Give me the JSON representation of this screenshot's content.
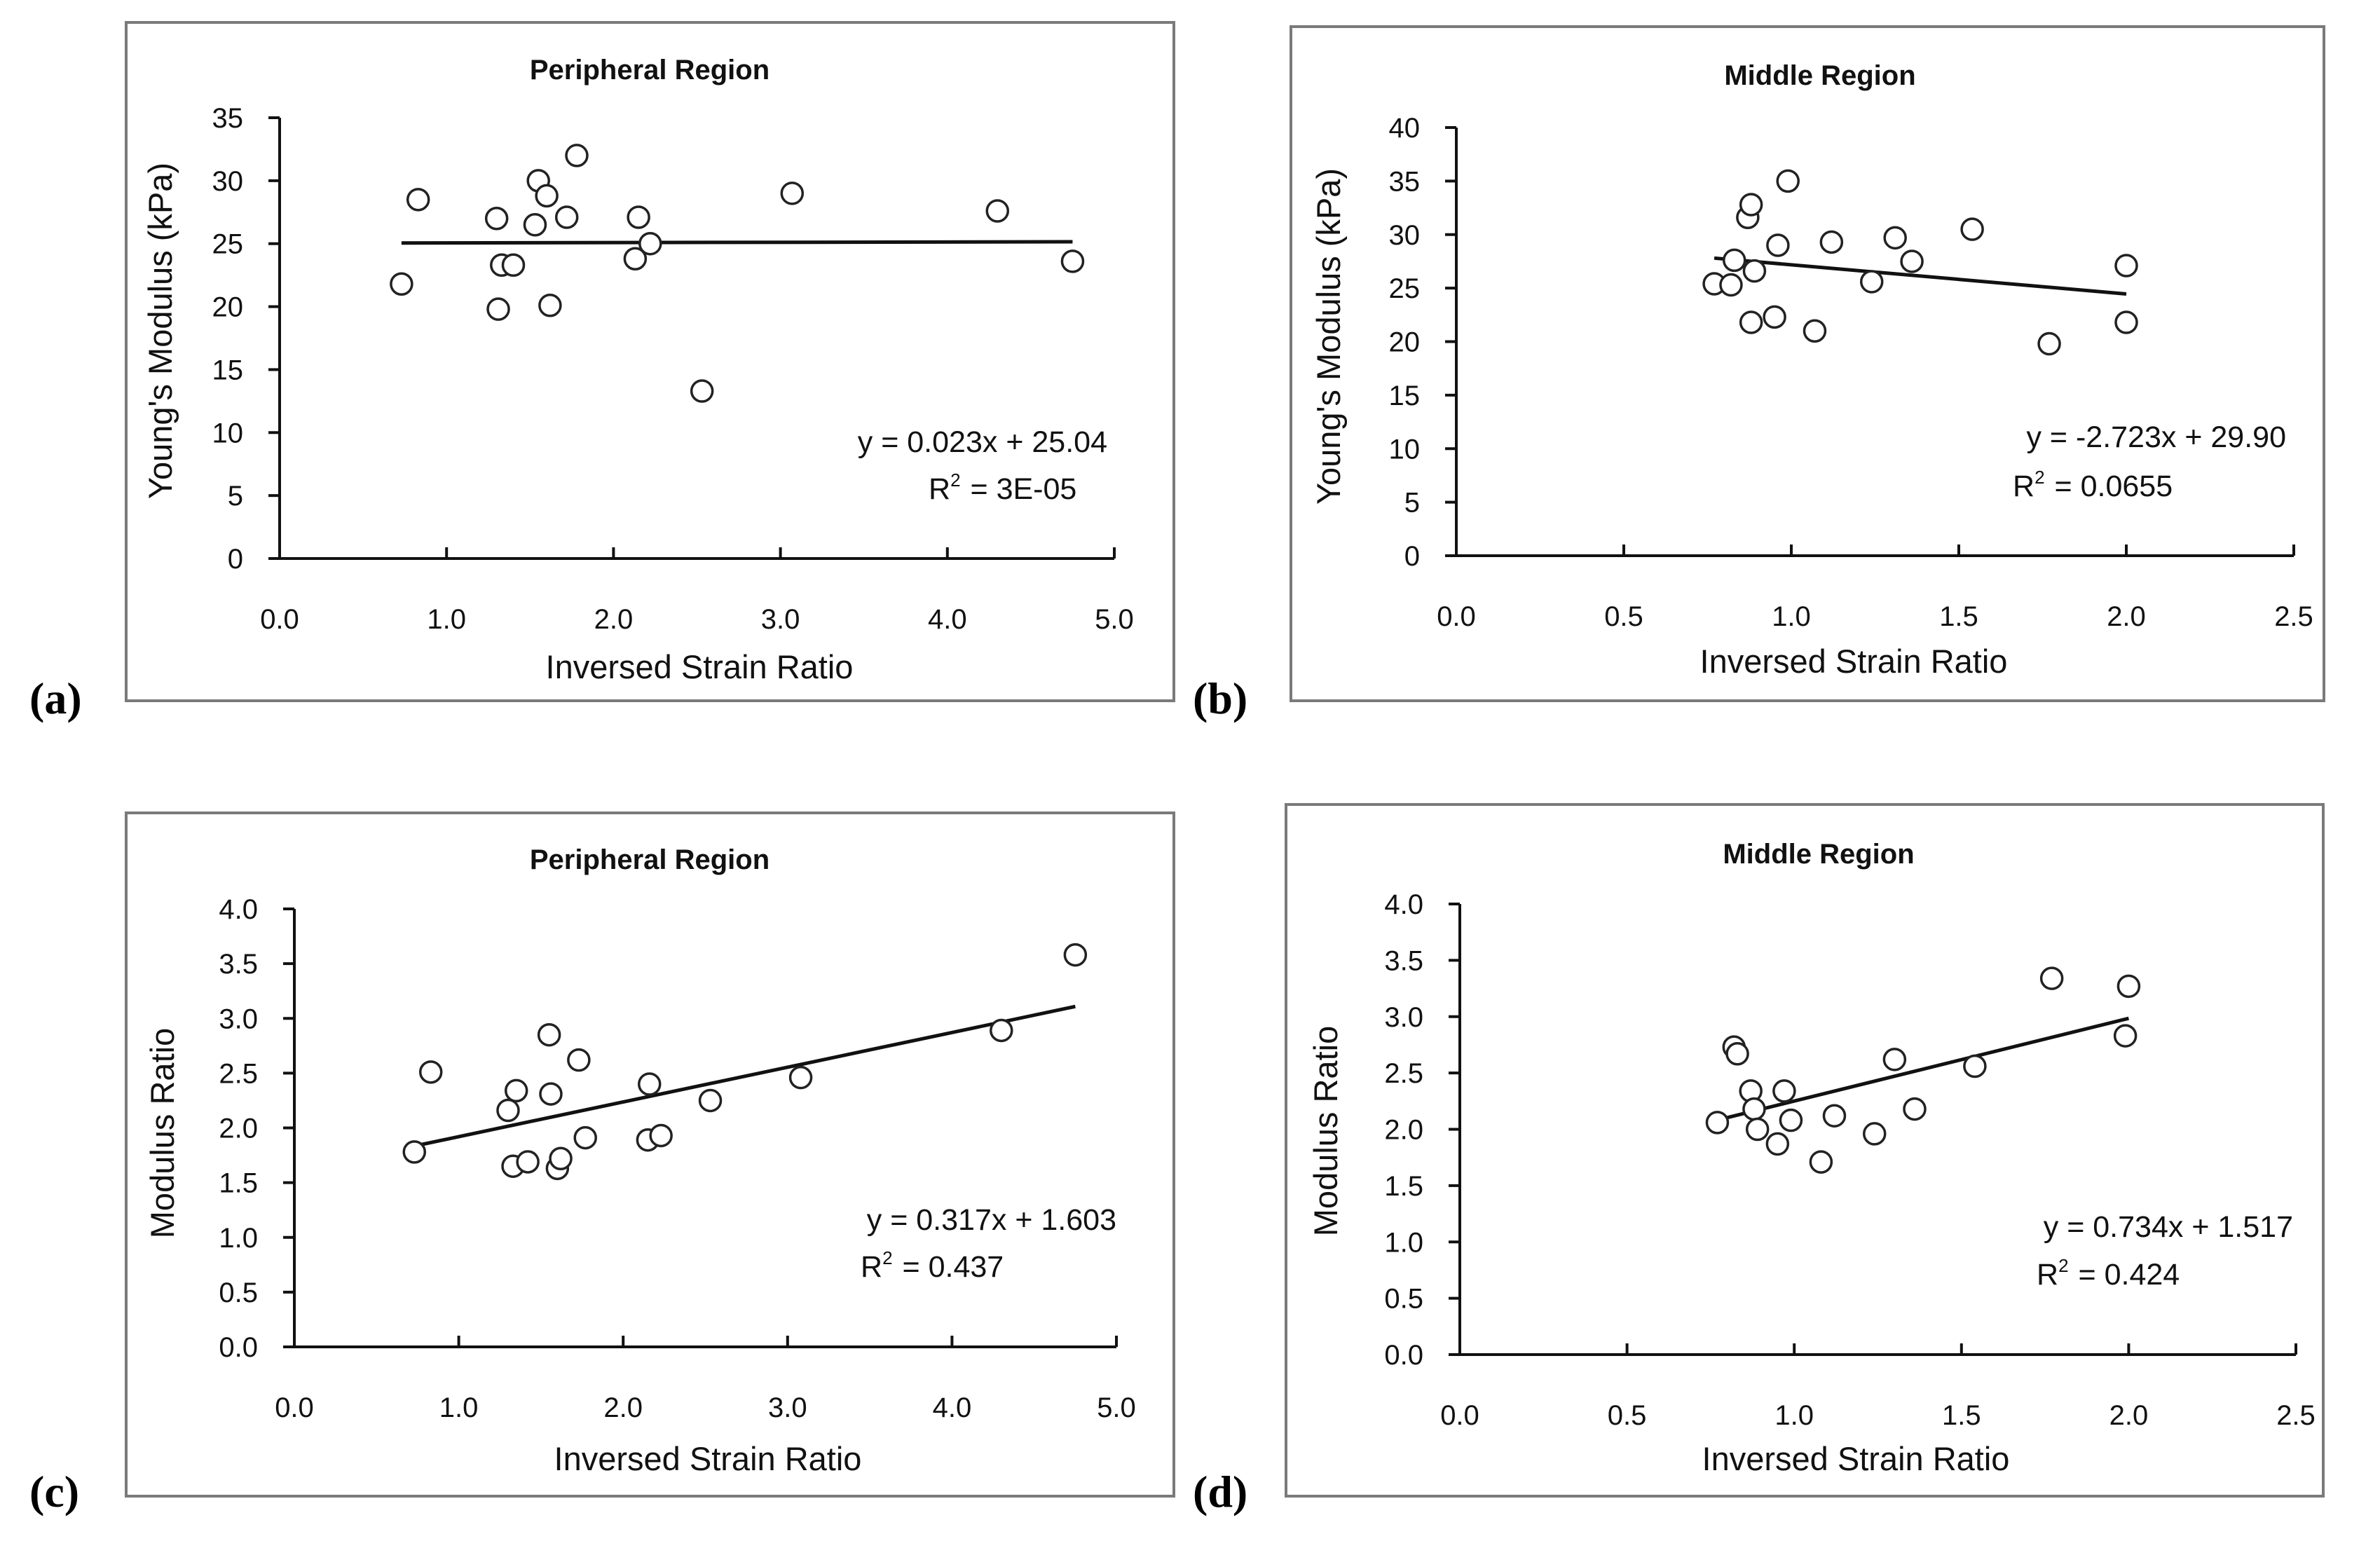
{
  "colors": {
    "background": "#ffffff",
    "axis": "#111111",
    "frame": "#7a7a7a",
    "marker_fill": "#ffffff",
    "marker_stroke": "#222222"
  },
  "panels": [
    {
      "label": "(a)"
    },
    {
      "label": "(b)"
    },
    {
      "label": "(c)"
    },
    {
      "label": "(d)"
    }
  ],
  "chart_data": [
    {
      "type": "scatter",
      "title": "Peripheral Region",
      "xlabel": "Inversed Strain Ratio",
      "ylabel": "Young's Modulus (kPa)",
      "xlim": [
        0,
        5
      ],
      "ylim": [
        0,
        35
      ],
      "x_ticks": [
        "0.0",
        "1.0",
        "2.0",
        "3.0",
        "4.0",
        "5.0"
      ],
      "y_ticks": [
        "0",
        "5",
        "10",
        "15",
        "20",
        "25",
        "30",
        "35"
      ],
      "x": [
        0.73,
        0.83,
        1.3,
        1.33,
        1.4,
        1.31,
        1.55,
        1.6,
        1.53,
        1.62,
        1.72,
        1.78,
        2.13,
        2.15,
        2.22,
        2.53,
        3.07,
        4.3,
        4.75
      ],
      "y": [
        21.8,
        28.5,
        27.0,
        23.3,
        23.3,
        19.8,
        30.0,
        28.8,
        26.5,
        20.1,
        27.1,
        32.0,
        23.8,
        27.1,
        25.0,
        13.3,
        29.0,
        27.6,
        23.6
      ],
      "trendline": {
        "slope": 0.023,
        "intercept": 25.04,
        "x_range": [
          0.73,
          4.75
        ]
      },
      "equation": "y = 0.023x + 25.04",
      "r2_label": "R",
      "r2_sup": "2",
      "r2_value": "= 3E-05"
    },
    {
      "type": "scatter",
      "title": "Middle Region",
      "xlabel": "Inversed Strain Ratio",
      "ylabel": "Young's Modulus (kPa)",
      "xlim": [
        0,
        2.5
      ],
      "ylim": [
        0,
        40
      ],
      "x_ticks": [
        "0.0",
        "0.5",
        "1.0",
        "1.5",
        "2.0",
        "2.5"
      ],
      "y_ticks": [
        "0",
        "5",
        "10",
        "15",
        "20",
        "25",
        "30",
        "35",
        "40"
      ],
      "x": [
        0.77,
        0.82,
        0.83,
        0.87,
        0.88,
        0.89,
        0.88,
        0.95,
        0.96,
        0.99,
        1.07,
        1.12,
        1.24,
        1.31,
        1.36,
        1.54,
        1.77,
        2.0,
        2.0
      ],
      "y": [
        25.4,
        25.3,
        27.6,
        31.6,
        32.8,
        26.6,
        21.8,
        22.3,
        29.0,
        35.0,
        21.0,
        29.3,
        25.6,
        29.7,
        27.5,
        30.5,
        19.8,
        27.1,
        21.8
      ],
      "trendline": {
        "slope": -2.723,
        "intercept": 29.9,
        "x_range": [
          0.77,
          2.0
        ]
      },
      "equation": "y = -2.723x + 29.90",
      "r2_label": "R",
      "r2_sup": "2",
      "r2_value": "= 0.0655"
    },
    {
      "type": "scatter",
      "title": "Peripheral Region",
      "xlabel": "Inversed Strain Ratio",
      "ylabel": "Modulus Ratio",
      "xlim": [
        0,
        5
      ],
      "ylim": [
        0,
        4
      ],
      "x_ticks": [
        "0.0",
        "1.0",
        "2.0",
        "3.0",
        "4.0",
        "5.0"
      ],
      "y_ticks": [
        "0.0",
        "0.5",
        "1.0",
        "1.5",
        "2.0",
        "2.5",
        "3.0",
        "3.5",
        "4.0"
      ],
      "x": [
        0.73,
        0.83,
        1.3,
        1.33,
        1.35,
        1.42,
        1.55,
        1.56,
        1.6,
        1.62,
        1.73,
        1.77,
        2.15,
        2.16,
        2.23,
        2.53,
        3.08,
        4.3,
        4.75
      ],
      "y": [
        1.78,
        2.51,
        2.16,
        1.65,
        2.34,
        1.69,
        2.85,
        2.31,
        1.63,
        1.72,
        2.62,
        1.91,
        1.89,
        2.4,
        1.93,
        2.25,
        2.46,
        2.89,
        3.58
      ],
      "trendline": {
        "slope": 0.317,
        "intercept": 1.603,
        "x_range": [
          0.73,
          4.75
        ]
      },
      "equation": "y = 0.317x + 1.603",
      "r2_label": "R",
      "r2_sup": "2",
      "r2_value": "= 0.437"
    },
    {
      "type": "scatter",
      "title": "Middle Region",
      "xlabel": "Inversed Strain Ratio",
      "ylabel": "Modulus Ratio",
      "xlim": [
        0,
        2.5
      ],
      "ylim": [
        0,
        4
      ],
      "x_ticks": [
        "0.0",
        "0.5",
        "1.0",
        "1.5",
        "2.0",
        "2.5"
      ],
      "y_ticks": [
        "0.0",
        "0.5",
        "1.0",
        "1.5",
        "2.0",
        "2.5",
        "3.0",
        "3.5",
        "4.0"
      ],
      "x": [
        0.77,
        0.82,
        0.83,
        0.87,
        0.88,
        0.89,
        0.95,
        0.97,
        0.99,
        1.08,
        1.12,
        1.24,
        1.3,
        1.36,
        1.54,
        1.77,
        2.0,
        1.99
      ],
      "y": [
        2.06,
        2.73,
        2.67,
        2.34,
        2.18,
        2.0,
        1.87,
        2.34,
        2.08,
        1.71,
        2.12,
        1.96,
        2.62,
        2.18,
        2.56,
        3.34,
        3.27,
        2.83
      ],
      "trendline": {
        "slope": 0.734,
        "intercept": 1.517,
        "x_range": [
          0.77,
          2.0
        ]
      },
      "equation": "y = 0.734x + 1.517",
      "r2_label": "R",
      "r2_sup": "2",
      "r2_value": "= 0.424"
    }
  ]
}
